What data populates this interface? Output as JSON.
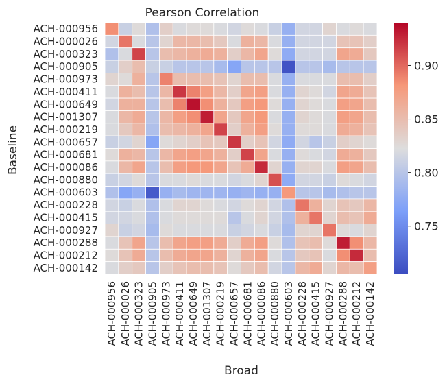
{
  "chart_data": {
    "type": "heatmap",
    "title": "Pearson Correlation",
    "xlabel": "Broad",
    "ylabel": "Baseline",
    "x_categories": [
      "ACH-000956",
      "ACH-000026",
      "ACH-000323",
      "ACH-000905",
      "ACH-000973",
      "ACH-000411",
      "ACH-000649",
      "ACH-001307",
      "ACH-000219",
      "ACH-000657",
      "ACH-000681",
      "ACH-000086",
      "ACH-000880",
      "ACH-000603",
      "ACH-000228",
      "ACH-000415",
      "ACH-000927",
      "ACH-000288",
      "ACH-000212",
      "ACH-000142"
    ],
    "y_categories": [
      "ACH-000956",
      "ACH-000026",
      "ACH-000323",
      "ACH-000905",
      "ACH-000973",
      "ACH-000411",
      "ACH-000649",
      "ACH-001307",
      "ACH-000219",
      "ACH-000657",
      "ACH-000681",
      "ACH-000086",
      "ACH-000880",
      "ACH-000603",
      "ACH-000228",
      "ACH-000415",
      "ACH-000927",
      "ACH-000288",
      "ACH-000212",
      "ACH-000142"
    ],
    "values": [
      [
        0.885,
        0.81,
        0.825,
        0.795,
        0.835,
        0.82,
        0.825,
        0.825,
        0.82,
        0.815,
        0.825,
        0.82,
        0.81,
        0.78,
        0.815,
        0.815,
        0.83,
        0.82,
        0.825,
        0.82
      ],
      [
        0.815,
        0.895,
        0.82,
        0.8,
        0.83,
        0.855,
        0.855,
        0.85,
        0.84,
        0.82,
        0.86,
        0.855,
        0.82,
        0.78,
        0.815,
        0.815,
        0.815,
        0.845,
        0.845,
        0.835
      ],
      [
        0.795,
        0.82,
        0.915,
        0.8,
        0.85,
        0.855,
        0.86,
        0.865,
        0.86,
        0.835,
        0.855,
        0.87,
        0.825,
        0.775,
        0.815,
        0.815,
        0.815,
        0.87,
        0.865,
        0.84
      ],
      [
        0.81,
        0.835,
        0.85,
        0.81,
        0.81,
        0.8,
        0.8,
        0.8,
        0.79,
        0.77,
        0.8,
        0.8,
        0.8,
        0.71,
        0.8,
        0.8,
        0.79,
        0.8,
        0.8,
        0.8
      ],
      [
        0.83,
        0.825,
        0.86,
        0.8,
        0.89,
        0.85,
        0.85,
        0.85,
        0.845,
        0.83,
        0.85,
        0.85,
        0.82,
        0.78,
        0.82,
        0.82,
        0.82,
        0.85,
        0.85,
        0.835
      ],
      [
        0.82,
        0.86,
        0.85,
        0.8,
        0.855,
        0.92,
        0.89,
        0.875,
        0.855,
        0.835,
        0.87,
        0.875,
        0.82,
        0.78,
        0.83,
        0.825,
        0.815,
        0.87,
        0.865,
        0.845
      ],
      [
        0.815,
        0.86,
        0.86,
        0.8,
        0.85,
        0.89,
        0.935,
        0.885,
        0.86,
        0.84,
        0.875,
        0.88,
        0.825,
        0.78,
        0.83,
        0.825,
        0.82,
        0.875,
        0.87,
        0.85
      ],
      [
        0.82,
        0.855,
        0.865,
        0.8,
        0.855,
        0.875,
        0.885,
        0.93,
        0.87,
        0.84,
        0.87,
        0.88,
        0.82,
        0.78,
        0.83,
        0.825,
        0.82,
        0.875,
        0.87,
        0.85
      ],
      [
        0.82,
        0.84,
        0.855,
        0.795,
        0.85,
        0.855,
        0.86,
        0.87,
        0.915,
        0.835,
        0.86,
        0.875,
        0.825,
        0.78,
        0.825,
        0.825,
        0.82,
        0.865,
        0.86,
        0.845
      ],
      [
        0.81,
        0.815,
        0.83,
        0.77,
        0.825,
        0.83,
        0.835,
        0.845,
        0.84,
        0.92,
        0.835,
        0.845,
        0.815,
        0.775,
        0.815,
        0.8,
        0.81,
        0.835,
        0.83,
        0.825
      ],
      [
        0.825,
        0.86,
        0.855,
        0.8,
        0.855,
        0.87,
        0.875,
        0.87,
        0.86,
        0.835,
        0.915,
        0.87,
        0.82,
        0.78,
        0.825,
        0.82,
        0.815,
        0.865,
        0.86,
        0.84
      ],
      [
        0.82,
        0.855,
        0.87,
        0.8,
        0.85,
        0.875,
        0.88,
        0.88,
        0.87,
        0.845,
        0.865,
        0.925,
        0.83,
        0.78,
        0.83,
        0.83,
        0.82,
        0.875,
        0.87,
        0.85
      ],
      [
        0.81,
        0.815,
        0.825,
        0.8,
        0.82,
        0.82,
        0.825,
        0.82,
        0.82,
        0.815,
        0.82,
        0.83,
        0.91,
        0.775,
        0.815,
        0.815,
        0.81,
        0.825,
        0.82,
        0.815
      ],
      [
        0.795,
        0.77,
        0.78,
        0.715,
        0.78,
        0.79,
        0.785,
        0.785,
        0.785,
        0.78,
        0.785,
        0.78,
        0.78,
        0.88,
        0.8,
        0.8,
        0.79,
        0.795,
        0.8,
        0.8
      ],
      [
        0.815,
        0.81,
        0.82,
        0.795,
        0.82,
        0.83,
        0.83,
        0.825,
        0.82,
        0.815,
        0.825,
        0.83,
        0.815,
        0.795,
        0.895,
        0.86,
        0.83,
        0.845,
        0.84,
        0.855
      ],
      [
        0.815,
        0.815,
        0.82,
        0.795,
        0.82,
        0.825,
        0.825,
        0.825,
        0.825,
        0.8,
        0.82,
        0.83,
        0.815,
        0.795,
        0.86,
        0.895,
        0.83,
        0.85,
        0.845,
        0.865
      ],
      [
        0.83,
        0.81,
        0.815,
        0.79,
        0.825,
        0.82,
        0.82,
        0.82,
        0.82,
        0.81,
        0.815,
        0.82,
        0.81,
        0.79,
        0.83,
        0.83,
        0.895,
        0.825,
        0.82,
        0.83
      ],
      [
        0.82,
        0.845,
        0.87,
        0.8,
        0.85,
        0.87,
        0.875,
        0.875,
        0.865,
        0.835,
        0.865,
        0.875,
        0.825,
        0.795,
        0.845,
        0.85,
        0.825,
        0.93,
        0.885,
        0.855
      ],
      [
        0.825,
        0.845,
        0.865,
        0.8,
        0.85,
        0.865,
        0.87,
        0.87,
        0.86,
        0.83,
        0.86,
        0.87,
        0.82,
        0.8,
        0.84,
        0.845,
        0.82,
        0.885,
        0.925,
        0.85
      ],
      [
        0.82,
        0.835,
        0.84,
        0.8,
        0.835,
        0.845,
        0.85,
        0.85,
        0.845,
        0.825,
        0.84,
        0.85,
        0.815,
        0.8,
        0.855,
        0.865,
        0.83,
        0.855,
        0.85,
        0.875
      ]
    ],
    "colorscale": "coolwarm",
    "vmin": 0.705,
    "vmax": 0.94,
    "colorbar_ticks": [
      "0.75",
      "0.80",
      "0.85",
      "0.90"
    ],
    "colorbar_tick_values": [
      0.75,
      0.8,
      0.85,
      0.9
    ],
    "grid": true,
    "legend": "colorbar-right"
  }
}
